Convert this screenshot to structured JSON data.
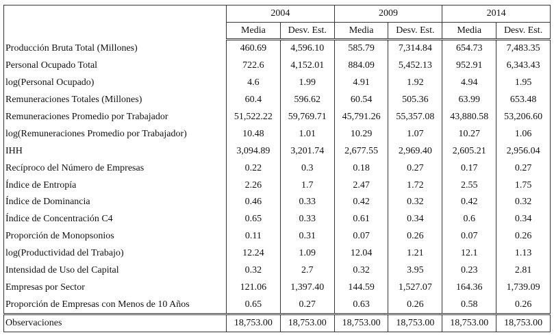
{
  "table": {
    "years": [
      "2004",
      "2009",
      "2014"
    ],
    "subheaders": [
      "Media",
      "Desv. Est.",
      "Media",
      "Desv. Est.",
      "Media",
      "Desv. Est."
    ],
    "rows": [
      {
        "label": "Producción Bruta Total (Millones)",
        "values": [
          "460.69",
          "4,596.10",
          "585.79",
          "7,314.84",
          "654.73",
          "7,483.35"
        ]
      },
      {
        "label": "Personal Ocupado Total",
        "values": [
          "722.6",
          "4,152.01",
          "884.09",
          "5,452.13",
          "952.91",
          "6,343.43"
        ]
      },
      {
        "label": "log(Personal Ocupado)",
        "values": [
          "4.6",
          "1.99",
          "4.91",
          "1.92",
          "4.94",
          "1.95"
        ]
      },
      {
        "label": "Remuneraciones Totales (Millones)",
        "values": [
          "60.4",
          "596.62",
          "60.54",
          "505.36",
          "63.99",
          "653.48"
        ]
      },
      {
        "label": "Remuneraciones Promedio por Trabajador",
        "values": [
          "51,522.22",
          "59,769.71",
          "45,791.26",
          "55,357.08",
          "43,880.58",
          "53,206.60"
        ]
      },
      {
        "label": "log(Remuneraciones Promedio por Trabajador)",
        "values": [
          "10.48",
          "1.01",
          "10.29",
          "1.07",
          "10.27",
          "1.06"
        ]
      },
      {
        "label": "IHH",
        "values": [
          "3,094.89",
          "3,201.74",
          "2,677.55",
          "2,969.40",
          "2,605.21",
          "2,956.04"
        ]
      },
      {
        "label": "Recíproco del Número de Empresas",
        "values": [
          "0.22",
          "0.3",
          "0.18",
          "0.27",
          "0.17",
          "0.27"
        ]
      },
      {
        "label": "Índice de Entropía",
        "values": [
          "2.26",
          "1.7",
          "2.47",
          "1.72",
          "2.55",
          "1.75"
        ]
      },
      {
        "label": "Índice de Dominancia",
        "values": [
          "0.46",
          "0.33",
          "0.42",
          "0.32",
          "0.42",
          "0.32"
        ]
      },
      {
        "label": "Índice de Concentración C4",
        "values": [
          "0.65",
          "0.33",
          "0.61",
          "0.34",
          "0.6",
          "0.34"
        ]
      },
      {
        "label": "Proporción de Monopsonios",
        "values": [
          "0.11",
          "0.31",
          "0.07",
          "0.26",
          "0.07",
          "0.26"
        ]
      },
      {
        "label": "log(Productividad del Trabajo)",
        "values": [
          "12.24",
          "1.09",
          "12.04",
          "1.21",
          "12.1",
          "1.13"
        ]
      },
      {
        "label": "Intensidad de Uso del Capital",
        "values": [
          "0.32",
          "2.7",
          "0.32",
          "3.95",
          "0.23",
          "2.81"
        ]
      },
      {
        "label": "Empresas por Sector",
        "values": [
          "121.06",
          "1,397.40",
          "144.59",
          "1,527.07",
          "164.36",
          "1,739.09"
        ]
      },
      {
        "label": "Proporción de Empresas con Menos de 10 Años",
        "values": [
          "0.65",
          "0.27",
          "0.63",
          "0.26",
          "0.58",
          "0.26"
        ]
      }
    ],
    "footer": {
      "label": "Observaciones",
      "values": [
        "18,753.00",
        "18,753.00",
        "18,753.00",
        "18,753.00",
        "18,753.00",
        "18,753.00"
      ]
    }
  }
}
